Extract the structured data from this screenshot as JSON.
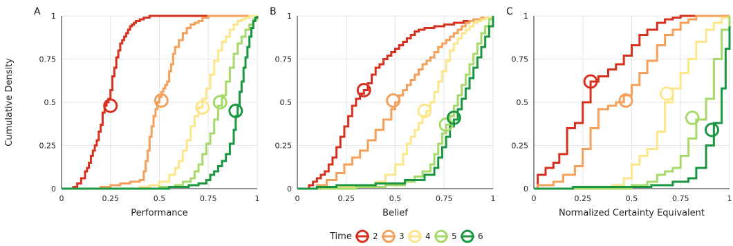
{
  "figure": {
    "ylabel": "Cumulative Density",
    "legend": {
      "title": "Time",
      "placement": "bottom-center"
    },
    "colors": {
      "2": "#d7301f",
      "3": "#f4a05a",
      "4": "#fde68a",
      "5": "#a6d96a",
      "6": "#1a9641"
    }
  },
  "chart_data": [
    {
      "type": "line",
      "panel": "A",
      "xlabel": "Performance",
      "ylabel": "Cumulative Density",
      "xlim": [
        0,
        1
      ],
      "ylim": [
        0,
        1
      ],
      "xticks": [
        "0",
        "0.25",
        "0.5",
        "0.75",
        "1"
      ],
      "yticks": [
        "0",
        "0.25",
        "0.5",
        "0.75",
        "1"
      ],
      "grid": true,
      "series": [
        {
          "name": "2",
          "color": "#d7301f",
          "x": [
            0,
            0.06,
            0.08,
            0.1,
            0.12,
            0.13,
            0.14,
            0.15,
            0.16,
            0.17,
            0.18,
            0.19,
            0.2,
            0.21,
            0.22,
            0.23,
            0.24,
            0.25,
            0.26,
            0.27,
            0.28,
            0.29,
            0.3,
            0.31,
            0.32,
            0.33,
            0.34,
            0.35,
            0.36,
            0.37,
            0.38,
            0.4,
            0.42,
            0.45,
            0.5,
            0.55,
            0.6,
            1.0
          ],
          "y": [
            0,
            0.01,
            0.03,
            0.06,
            0.1,
            0.12,
            0.15,
            0.19,
            0.22,
            0.25,
            0.28,
            0.33,
            0.37,
            0.44,
            0.48,
            0.5,
            0.52,
            0.57,
            0.65,
            0.7,
            0.76,
            0.8,
            0.84,
            0.86,
            0.88,
            0.9,
            0.92,
            0.94,
            0.95,
            0.96,
            0.97,
            0.98,
            0.99,
            1.0,
            1.0,
            1.0,
            1.0,
            1.0
          ],
          "marker": {
            "x": 0.25,
            "y": 0.48
          }
        },
        {
          "name": "3",
          "color": "#f4a05a",
          "x": [
            0,
            0.2,
            0.25,
            0.3,
            0.35,
            0.4,
            0.42,
            0.43,
            0.44,
            0.45,
            0.46,
            0.47,
            0.48,
            0.49,
            0.5,
            0.51,
            0.52,
            0.53,
            0.54,
            0.55,
            0.56,
            0.57,
            0.58,
            0.6,
            0.62,
            0.64,
            0.66,
            0.68,
            0.7,
            0.72,
            0.75,
            1.0
          ],
          "y": [
            0,
            0.01,
            0.02,
            0.03,
            0.04,
            0.05,
            0.1,
            0.16,
            0.22,
            0.3,
            0.36,
            0.42,
            0.46,
            0.5,
            0.53,
            0.56,
            0.58,
            0.6,
            0.62,
            0.68,
            0.72,
            0.78,
            0.82,
            0.86,
            0.9,
            0.93,
            0.95,
            0.96,
            0.97,
            0.99,
            1.0,
            1.0
          ],
          "marker": {
            "x": 0.51,
            "y": 0.51
          }
        },
        {
          "name": "4",
          "color": "#fde68a",
          "x": [
            0,
            0.4,
            0.45,
            0.5,
            0.55,
            0.58,
            0.6,
            0.62,
            0.64,
            0.66,
            0.68,
            0.7,
            0.72,
            0.74,
            0.76,
            0.78,
            0.8,
            0.82,
            0.84,
            0.86,
            0.88,
            0.9,
            0.92,
            0.94,
            0.96,
            1.0
          ],
          "y": [
            0,
            0.01,
            0.02,
            0.04,
            0.08,
            0.12,
            0.16,
            0.22,
            0.28,
            0.36,
            0.42,
            0.47,
            0.52,
            0.58,
            0.66,
            0.74,
            0.8,
            0.85,
            0.88,
            0.92,
            0.95,
            0.97,
            0.98,
            0.99,
            1.0,
            1.0
          ],
          "marker": {
            "x": 0.72,
            "y": 0.47
          }
        },
        {
          "name": "5",
          "color": "#a6d96a",
          "x": [
            0,
            0.5,
            0.58,
            0.62,
            0.66,
            0.68,
            0.7,
            0.72,
            0.74,
            0.76,
            0.78,
            0.8,
            0.82,
            0.84,
            0.86,
            0.88,
            0.9,
            0.92,
            0.94,
            0.96,
            0.98,
            1.0
          ],
          "y": [
            0,
            0.01,
            0.02,
            0.04,
            0.06,
            0.1,
            0.14,
            0.2,
            0.26,
            0.32,
            0.4,
            0.48,
            0.54,
            0.62,
            0.7,
            0.78,
            0.84,
            0.88,
            0.92,
            0.95,
            0.98,
            1.0
          ],
          "marker": {
            "x": 0.81,
            "y": 0.5
          }
        },
        {
          "name": "6",
          "color": "#1a9641",
          "x": [
            0,
            0.55,
            0.65,
            0.7,
            0.74,
            0.76,
            0.78,
            0.8,
            0.82,
            0.84,
            0.86,
            0.88,
            0.89,
            0.9,
            0.91,
            0.92,
            0.93,
            0.94,
            0.95,
            0.96,
            0.97,
            0.98,
            0.99,
            1.0
          ],
          "y": [
            0,
            0.01,
            0.02,
            0.03,
            0.05,
            0.08,
            0.1,
            0.13,
            0.16,
            0.2,
            0.26,
            0.34,
            0.42,
            0.48,
            0.56,
            0.62,
            0.7,
            0.76,
            0.82,
            0.88,
            0.93,
            0.97,
            0.99,
            1.0
          ],
          "marker": {
            "x": 0.89,
            "y": 0.45
          }
        }
      ]
    },
    {
      "type": "line",
      "panel": "B",
      "xlabel": "Belief",
      "ylabel": "",
      "xlim": [
        0,
        1
      ],
      "ylim": [
        0,
        1
      ],
      "xticks": [
        "0",
        "0.25",
        "0.5",
        "0.75",
        "1"
      ],
      "yticks": [
        "0",
        "0.25",
        "0.5",
        "0.75",
        "1"
      ],
      "grid": true,
      "series": [
        {
          "name": "2",
          "color": "#d7301f",
          "x": [
            0,
            0.06,
            0.08,
            0.1,
            0.12,
            0.14,
            0.16,
            0.18,
            0.2,
            0.22,
            0.24,
            0.26,
            0.28,
            0.3,
            0.32,
            0.34,
            0.36,
            0.38,
            0.4,
            0.42,
            0.44,
            0.46,
            0.48,
            0.5,
            0.52,
            0.54,
            0.56,
            0.58,
            0.6,
            0.62,
            0.65,
            0.7,
            0.75,
            0.8,
            0.85,
            0.9,
            0.95,
            1.0
          ],
          "y": [
            0,
            0.02,
            0.04,
            0.06,
            0.08,
            0.1,
            0.14,
            0.18,
            0.24,
            0.3,
            0.36,
            0.42,
            0.48,
            0.52,
            0.55,
            0.57,
            0.61,
            0.66,
            0.7,
            0.72,
            0.75,
            0.77,
            0.79,
            0.81,
            0.83,
            0.85,
            0.87,
            0.89,
            0.91,
            0.92,
            0.93,
            0.94,
            0.95,
            0.96,
            0.97,
            0.98,
            0.99,
            1.0
          ],
          "marker": {
            "x": 0.34,
            "y": 0.57
          }
        },
        {
          "name": "3",
          "color": "#f4a05a",
          "x": [
            0,
            0.1,
            0.15,
            0.2,
            0.24,
            0.28,
            0.32,
            0.36,
            0.4,
            0.44,
            0.48,
            0.5,
            0.52,
            0.54,
            0.56,
            0.58,
            0.6,
            0.62,
            0.64,
            0.66,
            0.68,
            0.7,
            0.72,
            0.74,
            0.76,
            0.78,
            0.8,
            0.82,
            0.84,
            0.86,
            0.88,
            0.9,
            0.94,
            1.0
          ],
          "y": [
            0,
            0.02,
            0.05,
            0.09,
            0.14,
            0.18,
            0.22,
            0.28,
            0.34,
            0.4,
            0.46,
            0.5,
            0.54,
            0.57,
            0.6,
            0.63,
            0.66,
            0.69,
            0.72,
            0.74,
            0.76,
            0.79,
            0.82,
            0.84,
            0.86,
            0.88,
            0.9,
            0.92,
            0.94,
            0.96,
            0.97,
            0.98,
            0.99,
            1.0
          ],
          "marker": {
            "x": 0.49,
            "y": 0.51
          }
        },
        {
          "name": "4",
          "color": "#fde68a",
          "x": [
            0,
            0.2,
            0.3,
            0.4,
            0.45,
            0.5,
            0.54,
            0.56,
            0.58,
            0.6,
            0.62,
            0.64,
            0.66,
            0.68,
            0.7,
            0.72,
            0.74,
            0.76,
            0.78,
            0.8,
            0.82,
            0.84,
            0.86,
            0.88,
            0.9,
            0.92,
            0.94,
            0.96,
            1.0
          ],
          "y": [
            0,
            0.01,
            0.02,
            0.04,
            0.08,
            0.14,
            0.2,
            0.26,
            0.3,
            0.34,
            0.38,
            0.42,
            0.45,
            0.5,
            0.56,
            0.62,
            0.68,
            0.74,
            0.8,
            0.84,
            0.87,
            0.9,
            0.92,
            0.94,
            0.96,
            0.97,
            0.98,
            0.99,
            1.0
          ],
          "marker": {
            "x": 0.65,
            "y": 0.45
          }
        },
        {
          "name": "5",
          "color": "#a6d96a",
          "x": [
            0,
            0.3,
            0.45,
            0.55,
            0.6,
            0.64,
            0.68,
            0.7,
            0.72,
            0.74,
            0.76,
            0.78,
            0.8,
            0.82,
            0.84,
            0.86,
            0.88,
            0.9,
            0.92,
            0.94,
            0.96,
            0.98,
            1.0
          ],
          "y": [
            0,
            0.01,
            0.02,
            0.04,
            0.07,
            0.1,
            0.14,
            0.2,
            0.26,
            0.32,
            0.37,
            0.42,
            0.48,
            0.54,
            0.6,
            0.66,
            0.72,
            0.78,
            0.84,
            0.9,
            0.94,
            0.98,
            1.0
          ],
          "marker": {
            "x": 0.76,
            "y": 0.37
          }
        },
        {
          "name": "6",
          "color": "#1a9641",
          "x": [
            0,
            0.1,
            0.2,
            0.4,
            0.55,
            0.65,
            0.7,
            0.72,
            0.74,
            0.76,
            0.78,
            0.8,
            0.82,
            0.84,
            0.86,
            0.88,
            0.9,
            0.92,
            0.94,
            0.96,
            0.98,
            1.0
          ],
          "y": [
            0,
            0.01,
            0.02,
            0.03,
            0.05,
            0.08,
            0.12,
            0.18,
            0.24,
            0.3,
            0.36,
            0.4,
            0.46,
            0.52,
            0.58,
            0.64,
            0.7,
            0.76,
            0.82,
            0.88,
            0.94,
            1.0
          ],
          "marker": {
            "x": 0.8,
            "y": 0.41
          }
        }
      ]
    },
    {
      "type": "line",
      "panel": "C",
      "xlabel": "Normalized Certainty Equivalent",
      "ylabel": "",
      "xlim": [
        0,
        1
      ],
      "ylim": [
        0,
        1
      ],
      "xticks": [
        "0",
        "0.25",
        "0.5",
        "0.75",
        "1"
      ],
      "yticks": [
        "0",
        "0.25",
        "0.5",
        "0.75",
        "1"
      ],
      "grid": true,
      "series": [
        {
          "name": "2",
          "color": "#d7301f",
          "x": [
            0,
            0.02,
            0.06,
            0.1,
            0.13,
            0.17,
            0.21,
            0.25,
            0.29,
            0.33,
            0.38,
            0.42,
            0.46,
            0.5,
            0.54,
            0.58,
            0.63,
            0.67,
            0.71,
            0.75,
            0.79,
            1.0
          ],
          "y": [
            0,
            0.08,
            0.12,
            0.15,
            0.2,
            0.35,
            0.38,
            0.5,
            0.62,
            0.65,
            0.69,
            0.72,
            0.77,
            0.83,
            0.89,
            0.92,
            0.96,
            0.98,
            0.99,
            1.0,
            1.0,
            1.0
          ],
          "marker": {
            "x": 0.29,
            "y": 0.62
          }
        },
        {
          "name": "3",
          "color": "#f4a05a",
          "x": [
            0,
            0.02,
            0.1,
            0.15,
            0.21,
            0.25,
            0.29,
            0.33,
            0.38,
            0.42,
            0.46,
            0.5,
            0.54,
            0.58,
            0.63,
            0.67,
            0.71,
            0.75,
            0.79,
            0.83,
            0.88,
            1.0
          ],
          "y": [
            0,
            0.02,
            0.04,
            0.08,
            0.13,
            0.23,
            0.35,
            0.46,
            0.48,
            0.5,
            0.54,
            0.6,
            0.67,
            0.74,
            0.83,
            0.89,
            0.92,
            0.96,
            0.98,
            1.0,
            1.0,
            1.0
          ],
          "marker": {
            "x": 0.47,
            "y": 0.51
          }
        },
        {
          "name": "4",
          "color": "#fde68a",
          "x": [
            0,
            0.4,
            0.46,
            0.5,
            0.54,
            0.58,
            0.63,
            0.67,
            0.71,
            0.75,
            0.79,
            0.83,
            0.88,
            0.92,
            0.96,
            1.0
          ],
          "y": [
            0,
            0.02,
            0.06,
            0.14,
            0.19,
            0.23,
            0.33,
            0.5,
            0.58,
            0.67,
            0.75,
            0.85,
            0.92,
            0.96,
            0.99,
            1.0
          ],
          "marker": {
            "x": 0.68,
            "y": 0.55
          }
        },
        {
          "name": "5",
          "color": "#a6d96a",
          "x": [
            0,
            0.5,
            0.58,
            0.63,
            0.67,
            0.71,
            0.75,
            0.79,
            0.83,
            0.88,
            0.92,
            0.96,
            1.0
          ],
          "y": [
            0,
            0.02,
            0.04,
            0.08,
            0.1,
            0.12,
            0.19,
            0.29,
            0.4,
            0.52,
            0.75,
            0.92,
            1.0
          ],
          "marker": {
            "x": 0.81,
            "y": 0.41
          }
        },
        {
          "name": "6",
          "color": "#1a9641",
          "x": [
            0,
            0.2,
            0.6,
            0.71,
            0.79,
            0.83,
            0.88,
            0.92,
            0.96,
            0.98,
            1.0
          ],
          "y": [
            0,
            0.01,
            0.02,
            0.04,
            0.06,
            0.12,
            0.25,
            0.38,
            0.58,
            0.81,
            0.94
          ],
          "marker": {
            "x": 0.91,
            "y": 0.34
          }
        }
      ]
    }
  ]
}
